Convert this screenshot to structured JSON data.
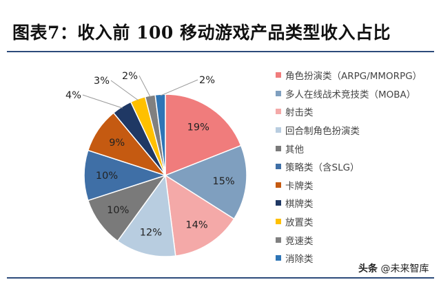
{
  "figure_title": "图表7：收入前 100 移动游戏产品类型收入占比",
  "watermark": {
    "logo": "头条",
    "handle": "@未来智库"
  },
  "chart_data": {
    "type": "pie",
    "title": "",
    "categories": [
      "角色扮演类（ARPG/MMORPG）",
      "多人在线战术竞技类（MOBA）",
      "射击类",
      "回合制角色扮演类",
      "其他",
      "策略类（含SLG）",
      "卡牌类",
      "棋牌类",
      "放置类",
      "竞速类",
      "消除类"
    ],
    "values": [
      19,
      15,
      14,
      12,
      10,
      10,
      9,
      4,
      3,
      2,
      2
    ],
    "labels": [
      "19%",
      "15%",
      "14%",
      "12%",
      "10%",
      "10%",
      "9%",
      "4%",
      "3%",
      "2%",
      "2%"
    ],
    "colors": [
      "#f07c7c",
      "#7f9fbf",
      "#f4a9a8",
      "#b8cde0",
      "#7a7a7a",
      "#3f6fa6",
      "#c55a11",
      "#1f3864",
      "#ffc000",
      "#808080",
      "#2e75b6"
    ],
    "legend_position": "right",
    "start_angle_deg": 0,
    "direction": "clockwise"
  }
}
